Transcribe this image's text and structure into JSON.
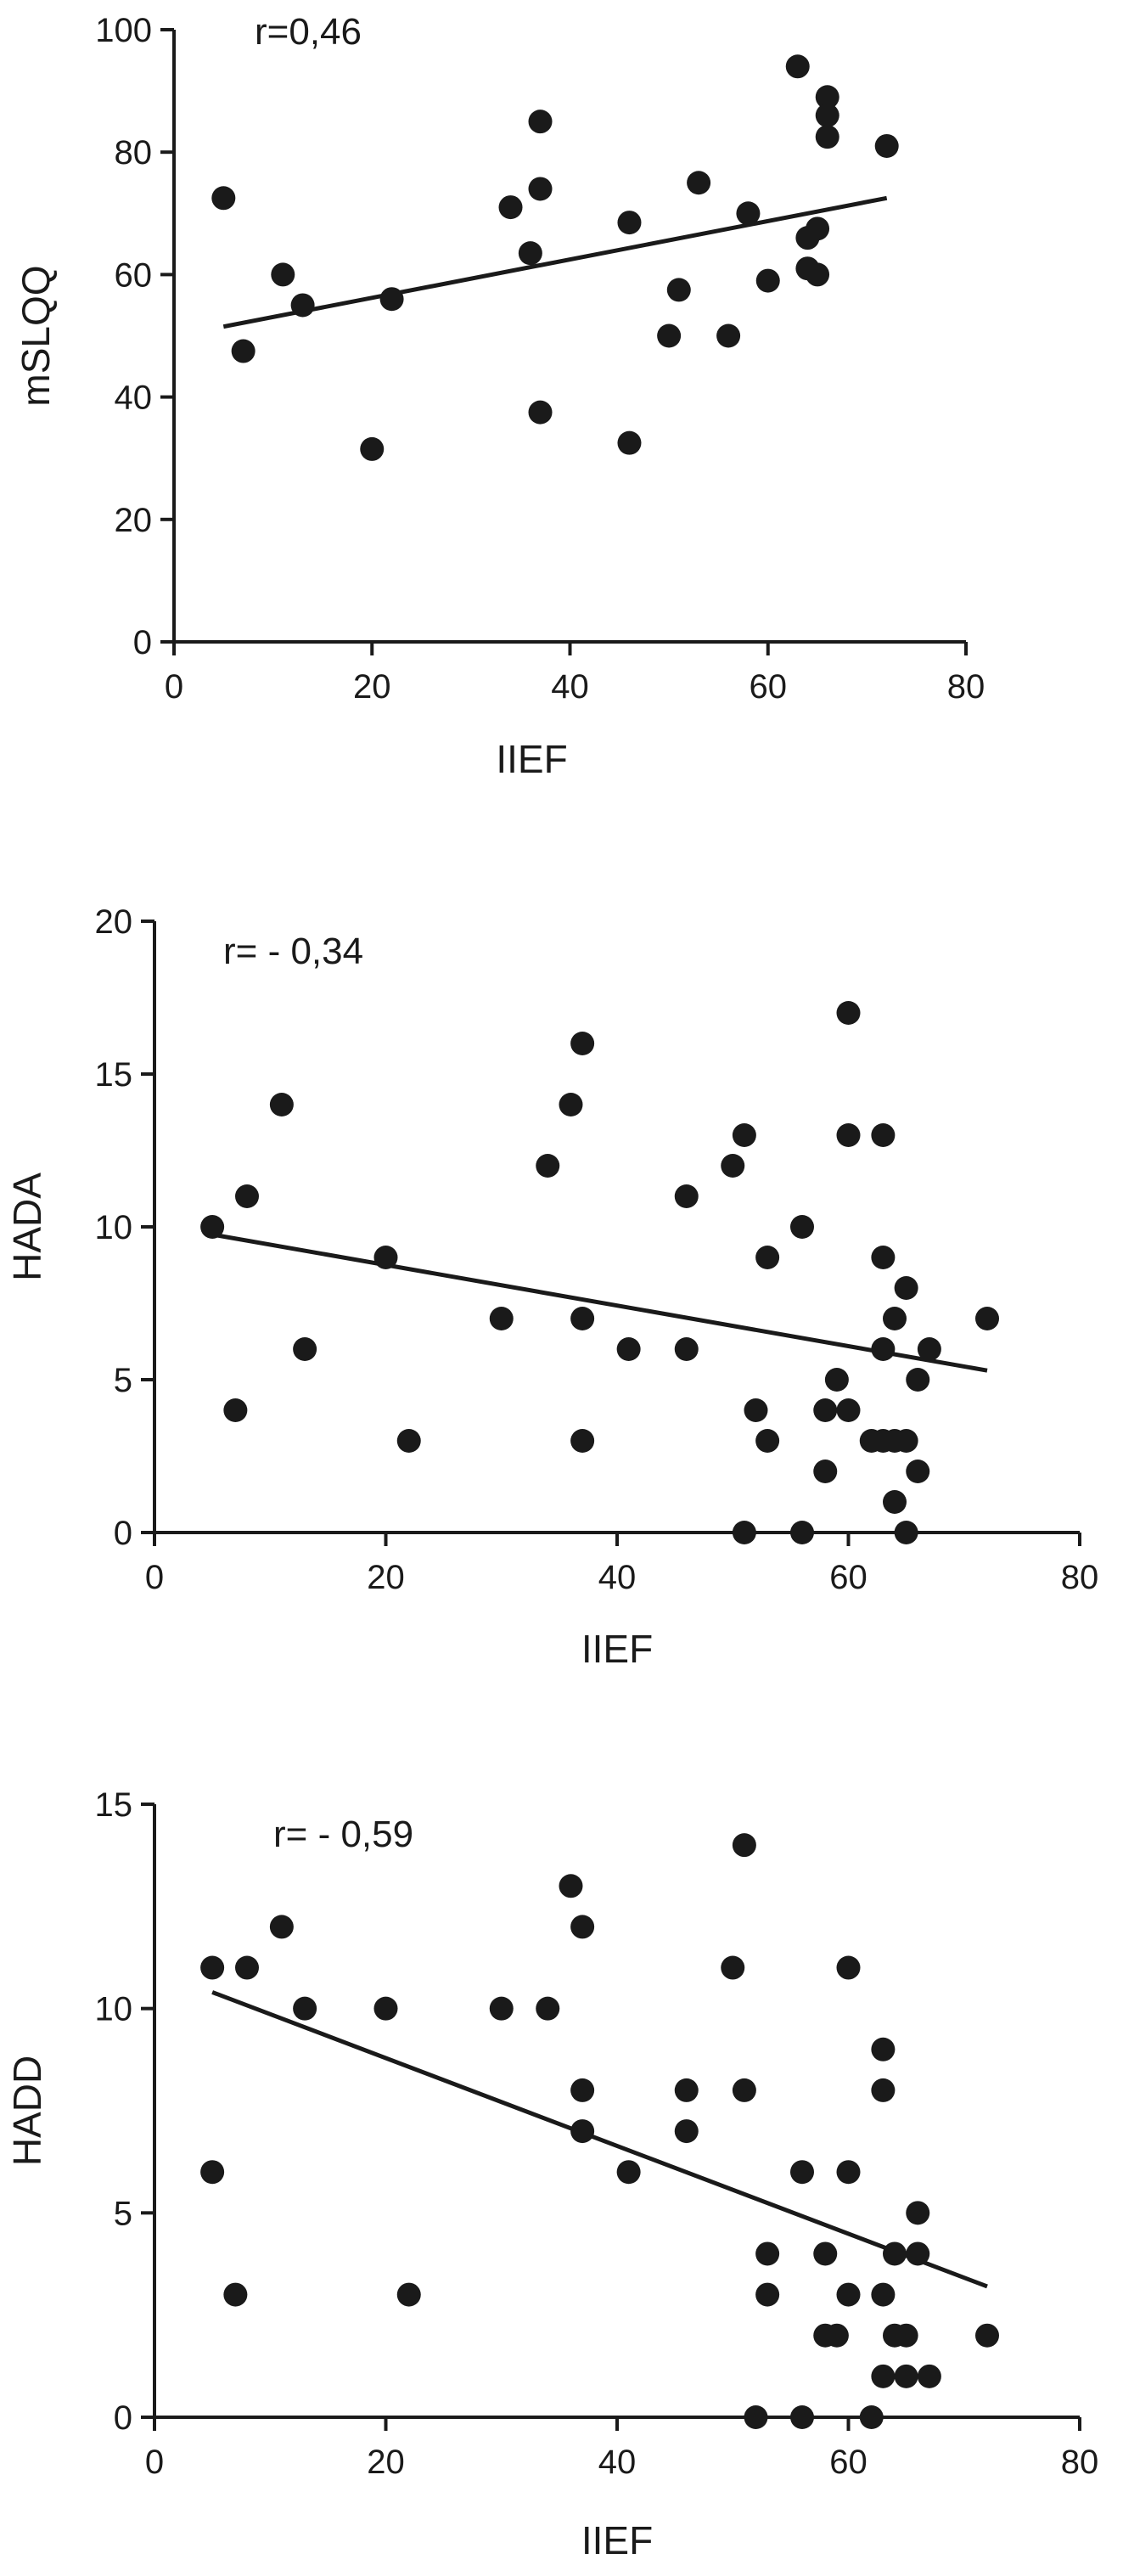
{
  "chart_data": [
    {
      "type": "scatter",
      "xlabel": "IIEF",
      "ylabel": "mSLQQ",
      "annotation": "r=0,46",
      "xlim": [
        0,
        80
      ],
      "ylim": [
        0,
        100
      ],
      "xticks": [
        "0",
        "20",
        "40",
        "60",
        "80"
      ],
      "yticks": [
        "0",
        "20",
        "40",
        "60",
        "80",
        "100"
      ],
      "grid": false,
      "trendline": {
        "x": [
          5,
          72
        ],
        "y": [
          51.5,
          72.5
        ]
      },
      "points": [
        {
          "x": 5,
          "y": 72.5
        },
        {
          "x": 7,
          "y": 47.5
        },
        {
          "x": 11,
          "y": 60
        },
        {
          "x": 13,
          "y": 55
        },
        {
          "x": 20,
          "y": 31.5
        },
        {
          "x": 22,
          "y": 56
        },
        {
          "x": 34,
          "y": 71
        },
        {
          "x": 36,
          "y": 63.5
        },
        {
          "x": 37,
          "y": 85
        },
        {
          "x": 37,
          "y": 74
        },
        {
          "x": 37,
          "y": 37.5
        },
        {
          "x": 46,
          "y": 68.5
        },
        {
          "x": 46,
          "y": 32.5
        },
        {
          "x": 50,
          "y": 50
        },
        {
          "x": 51,
          "y": 57.5
        },
        {
          "x": 53,
          "y": 75
        },
        {
          "x": 56,
          "y": 50
        },
        {
          "x": 58,
          "y": 70
        },
        {
          "x": 60,
          "y": 59
        },
        {
          "x": 63,
          "y": 94
        },
        {
          "x": 64,
          "y": 66
        },
        {
          "x": 64,
          "y": 61
        },
        {
          "x": 65,
          "y": 60
        },
        {
          "x": 65,
          "y": 67.5
        },
        {
          "x": 66,
          "y": 89
        },
        {
          "x": 66,
          "y": 86
        },
        {
          "x": 66,
          "y": 82.5
        },
        {
          "x": 72,
          "y": 81
        }
      ]
    },
    {
      "type": "scatter",
      "xlabel": "IIEF",
      "ylabel": "HADA",
      "annotation": "r= - 0,34",
      "xlim": [
        0,
        80
      ],
      "ylim": [
        0,
        20
      ],
      "xticks": [
        "0",
        "20",
        "40",
        "60",
        "80"
      ],
      "yticks": [
        "0",
        "5",
        "10",
        "15",
        "20"
      ],
      "grid": false,
      "trendline": {
        "x": [
          5,
          72
        ],
        "y": [
          9.75,
          5.3
        ]
      },
      "points": [
        {
          "x": 5,
          "y": 10
        },
        {
          "x": 7,
          "y": 4
        },
        {
          "x": 8,
          "y": 11
        },
        {
          "x": 11,
          "y": 14
        },
        {
          "x": 13,
          "y": 6
        },
        {
          "x": 20,
          "y": 9
        },
        {
          "x": 22,
          "y": 3
        },
        {
          "x": 30,
          "y": 7
        },
        {
          "x": 34,
          "y": 12
        },
        {
          "x": 36,
          "y": 14
        },
        {
          "x": 37,
          "y": 16
        },
        {
          "x": 37,
          "y": 7
        },
        {
          "x": 37,
          "y": 3
        },
        {
          "x": 41,
          "y": 6
        },
        {
          "x": 46,
          "y": 11
        },
        {
          "x": 46,
          "y": 6
        },
        {
          "x": 50,
          "y": 12
        },
        {
          "x": 51,
          "y": 13
        },
        {
          "x": 51,
          "y": 0
        },
        {
          "x": 52,
          "y": 4
        },
        {
          "x": 53,
          "y": 9
        },
        {
          "x": 53,
          "y": 3
        },
        {
          "x": 56,
          "y": 10
        },
        {
          "x": 56,
          "y": 0
        },
        {
          "x": 58,
          "y": 4
        },
        {
          "x": 58,
          "y": 2
        },
        {
          "x": 59,
          "y": 5
        },
        {
          "x": 60,
          "y": 17
        },
        {
          "x": 60,
          "y": 13
        },
        {
          "x": 60,
          "y": 4
        },
        {
          "x": 62,
          "y": 3
        },
        {
          "x": 63,
          "y": 13
        },
        {
          "x": 63,
          "y": 9
        },
        {
          "x": 63,
          "y": 6
        },
        {
          "x": 63,
          "y": 3
        },
        {
          "x": 64,
          "y": 3
        },
        {
          "x": 64,
          "y": 7
        },
        {
          "x": 64,
          "y": 1
        },
        {
          "x": 65,
          "y": 8
        },
        {
          "x": 65,
          "y": 3
        },
        {
          "x": 65,
          "y": 0
        },
        {
          "x": 66,
          "y": 5
        },
        {
          "x": 66,
          "y": 2
        },
        {
          "x": 67,
          "y": 6
        },
        {
          "x": 72,
          "y": 7
        }
      ]
    },
    {
      "type": "scatter",
      "xlabel": "IIEF",
      "ylabel": "HADD",
      "annotation": "r= - 0,59",
      "xlim": [
        0,
        80
      ],
      "ylim": [
        0,
        15
      ],
      "xticks": [
        "0",
        "20",
        "40",
        "60",
        "80"
      ],
      "yticks": [
        "0",
        "5",
        "10",
        "15"
      ],
      "grid": false,
      "trendline": {
        "x": [
          5,
          72
        ],
        "y": [
          10.4,
          3.2
        ]
      },
      "points": [
        {
          "x": 5,
          "y": 11
        },
        {
          "x": 5,
          "y": 6
        },
        {
          "x": 7,
          "y": 3
        },
        {
          "x": 8,
          "y": 11
        },
        {
          "x": 11,
          "y": 12
        },
        {
          "x": 13,
          "y": 10
        },
        {
          "x": 20,
          "y": 10
        },
        {
          "x": 22,
          "y": 3
        },
        {
          "x": 30,
          "y": 10
        },
        {
          "x": 34,
          "y": 10
        },
        {
          "x": 36,
          "y": 13
        },
        {
          "x": 37,
          "y": 12
        },
        {
          "x": 37,
          "y": 8
        },
        {
          "x": 37,
          "y": 7
        },
        {
          "x": 41,
          "y": 6
        },
        {
          "x": 46,
          "y": 8
        },
        {
          "x": 46,
          "y": 7
        },
        {
          "x": 50,
          "y": 11
        },
        {
          "x": 51,
          "y": 14
        },
        {
          "x": 51,
          "y": 8
        },
        {
          "x": 52,
          "y": 0
        },
        {
          "x": 53,
          "y": 4
        },
        {
          "x": 53,
          "y": 3
        },
        {
          "x": 56,
          "y": 6
        },
        {
          "x": 56,
          "y": 0
        },
        {
          "x": 58,
          "y": 4
        },
        {
          "x": 58,
          "y": 2
        },
        {
          "x": 59,
          "y": 2
        },
        {
          "x": 60,
          "y": 11
        },
        {
          "x": 60,
          "y": 6
        },
        {
          "x": 60,
          "y": 3
        },
        {
          "x": 62,
          "y": 0
        },
        {
          "x": 63,
          "y": 9
        },
        {
          "x": 63,
          "y": 8
        },
        {
          "x": 63,
          "y": 3
        },
        {
          "x": 63,
          "y": 1
        },
        {
          "x": 64,
          "y": 4
        },
        {
          "x": 64,
          "y": 2
        },
        {
          "x": 65,
          "y": 2
        },
        {
          "x": 65,
          "y": 1
        },
        {
          "x": 66,
          "y": 5
        },
        {
          "x": 66,
          "y": 4
        },
        {
          "x": 67,
          "y": 1
        },
        {
          "x": 72,
          "y": 2
        }
      ]
    }
  ]
}
